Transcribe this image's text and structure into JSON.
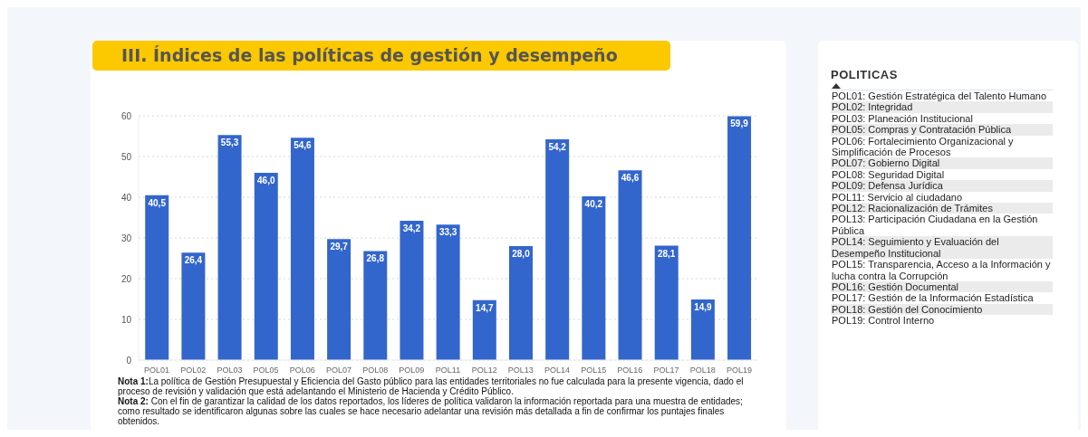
{
  "chart_data": [
    {
      "type": "bar",
      "title": "III. Índices de las políticas de gestión y desempeño",
      "categories": [
        "POL01",
        "POL02",
        "POL03",
        "POL05",
        "POL06",
        "POL07",
        "POL08",
        "POL09",
        "POL11",
        "POL12",
        "POL13",
        "POL14",
        "POL15",
        "POL16",
        "POL17",
        "POL18",
        "POL19"
      ],
      "values": [
        40.5,
        26.4,
        55.3,
        46.0,
        54.6,
        29.7,
        26.8,
        34.2,
        33.3,
        14.7,
        28.0,
        54.2,
        40.2,
        46.6,
        28.1,
        14.9,
        59.9
      ],
      "value_labels": [
        "40,5",
        "26,4",
        "55,3",
        "46,0",
        "54,6",
        "29,7",
        "26,8",
        "34,2",
        "33,3",
        "14,7",
        "28,0",
        "54,2",
        "40,2",
        "46,6",
        "28,1",
        "14,9",
        "59,9"
      ],
      "color": "#3366cc",
      "ylim": [
        0,
        60
      ],
      "yticks": [
        0,
        10,
        20,
        30,
        40,
        50,
        60
      ],
      "grid": "y",
      "legend": false,
      "annotations": [
        "Nota 1:La política de Gestión Presupuestal y Eficiencia del Gasto público para las entidades territoriales no fue calculada para la presente vigencia, dado el proceso de revisión y validación que está adelantando el Ministerio de Hacienda y Crédito Público.",
        "Nota 2: Con el fin de garantizar la calidad de los datos reportados, los líderes de política validaron la información reportada para una muestra de entidades; como resultado se identificaron algunas sobre las cuales se hace necesario adelantar una revisión más detallada a fin de confirmar los puntajes finales obtenidos."
      ]
    },
    {
      "type": "other",
      "title": "POLITICAS",
      "annotations": [
        "POL01: Gestión Estratégica del Talento Humano",
        "POL02: Integridad",
        "POL03: Planeación Institucional",
        "POL05: Compras y Contratación Pública",
        "POL06: Fortalecimiento Organizacional y Simplificación de Procesos",
        "POL07: Gobierno Digital",
        "POL08: Seguridad Digital",
        "POL09: Defensa Jurídica",
        "POL11: Servicio al ciudadano",
        "POL12: Racionalización de Trámites",
        "POL13: Participación Ciudadana en la Gestión Pública",
        "POL14: Seguimiento y Evaluación del Desempeño Institucional",
        "POL15: Transparencia, Acceso a la Información y lucha contra la Corrupción",
        "POL16: Gestión Documental",
        "POL17: Gestión de la Información Estadística",
        "POL18: Gestión del Conocimiento",
        "POL19: Control Interno"
      ]
    }
  ]
}
